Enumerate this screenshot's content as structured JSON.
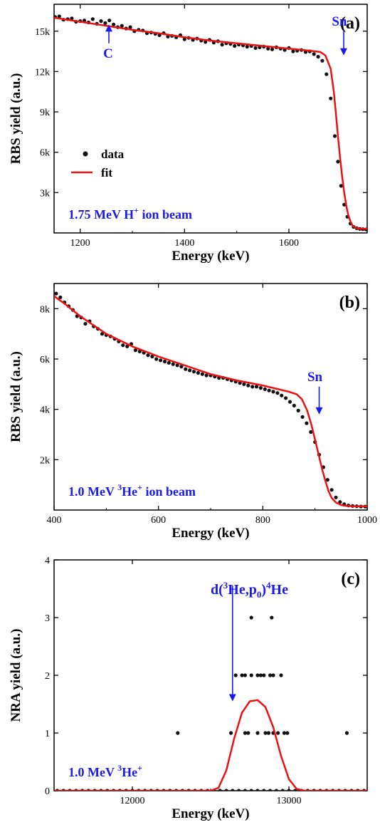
{
  "colors": {
    "data_points": "#111111",
    "fit_line": "#ee1111",
    "annotation": "#1a1aee",
    "axis": "#000000"
  },
  "chart_data": [
    {
      "type": "scatter",
      "panel_label": "(a)",
      "xlabel": "Energy (keV)",
      "ylabel": "RBS yield (a.u.)",
      "xlim": [
        1150,
        1750
      ],
      "ylim": [
        0,
        17000
      ],
      "xticks": [
        1200,
        1400,
        1600
      ],
      "xtick_labels": [
        "1200",
        "1400",
        "1600"
      ],
      "yticks": [
        3000,
        6000,
        9000,
        12000,
        15000
      ],
      "ytick_labels": [
        "3k",
        "6k",
        "9k",
        "12k",
        "15k"
      ],
      "grid": false,
      "legend_position": "middle-left",
      "legend": [
        {
          "label": "data",
          "kind": "marker"
        },
        {
          "label": "fit",
          "kind": "line"
        }
      ],
      "beam_label": {
        "text": "1.75 MeV H",
        "sup": "+",
        "tail": " ion beam"
      },
      "annotations": [
        {
          "text": "C",
          "arrow_x": 1255,
          "arrow_from": 14100,
          "arrow_to": 15500,
          "direction": "up"
        },
        {
          "text": "Sn",
          "arrow_x": 1705,
          "arrow_from": 15000,
          "arrow_to": 13200,
          "direction": "down"
        }
      ],
      "series": [
        {
          "name": "data",
          "style": "points",
          "x": [
            1152,
            1160,
            1168,
            1176,
            1184,
            1192,
            1200,
            1208,
            1216,
            1224,
            1232,
            1240,
            1248,
            1256,
            1264,
            1272,
            1280,
            1288,
            1296,
            1304,
            1312,
            1320,
            1328,
            1336,
            1344,
            1352,
            1360,
            1368,
            1376,
            1384,
            1392,
            1400,
            1408,
            1416,
            1424,
            1432,
            1440,
            1448,
            1456,
            1464,
            1472,
            1480,
            1488,
            1496,
            1504,
            1512,
            1520,
            1528,
            1536,
            1544,
            1552,
            1560,
            1568,
            1576,
            1584,
            1592,
            1600,
            1608,
            1616,
            1624,
            1632,
            1640,
            1648,
            1656,
            1664,
            1672,
            1680,
            1688,
            1694,
            1700,
            1706,
            1712,
            1718,
            1724,
            1730,
            1736,
            1742,
            1748
          ],
          "y": [
            16050,
            16100,
            15850,
            15900,
            15950,
            15700,
            15750,
            15800,
            15650,
            15900,
            15550,
            15750,
            15600,
            15800,
            15500,
            15300,
            15400,
            15200,
            15300,
            15000,
            15100,
            15050,
            14850,
            14900,
            14800,
            14700,
            14850,
            14600,
            14650,
            14550,
            14700,
            14400,
            14500,
            14350,
            14450,
            14300,
            14200,
            14350,
            14150,
            14250,
            14000,
            14100,
            14050,
            13900,
            14000,
            13950,
            13850,
            13900,
            13750,
            13800,
            13850,
            13700,
            13650,
            13800,
            13700,
            13600,
            13750,
            13500,
            13550,
            13600,
            13450,
            13500,
            13300,
            13100,
            12800,
            11800,
            10000,
            7200,
            5300,
            3500,
            2100,
            1200,
            700,
            450,
            350,
            300,
            280,
            260
          ]
        },
        {
          "name": "fit",
          "style": "line",
          "x": [
            1150,
            1200,
            1250,
            1300,
            1350,
            1400,
            1450,
            1500,
            1550,
            1600,
            1640,
            1660,
            1670,
            1680,
            1686,
            1690,
            1694,
            1698,
            1702,
            1706,
            1710,
            1714,
            1718,
            1722,
            1728,
            1735,
            1745,
            1750
          ],
          "y": [
            16000,
            15700,
            15400,
            15100,
            14850,
            14550,
            14300,
            14100,
            13900,
            13700,
            13550,
            13450,
            13200,
            12200,
            10500,
            8900,
            7200,
            5600,
            4200,
            3000,
            2000,
            1300,
            850,
            550,
            380,
            320,
            300,
            300
          ]
        }
      ]
    },
    {
      "type": "scatter",
      "panel_label": "(b)",
      "xlabel": "Energy (keV)",
      "ylabel": "RBS yield (a.u.)",
      "xlim": [
        400,
        1000
      ],
      "ylim": [
        0,
        9000
      ],
      "xticks": [
        400,
        600,
        800,
        1000
      ],
      "xtick_labels": [
        "400",
        "600",
        "800",
        "1000"
      ],
      "yticks": [
        2000,
        4000,
        6000,
        8000
      ],
      "ytick_labels": [
        "2k",
        "4k",
        "6k",
        "8k"
      ],
      "grid": false,
      "beam_label": {
        "text": "1.0 MeV ",
        "sup": "3",
        "tail": "He",
        "sup2": "+",
        "tail2": " ion beam"
      },
      "annotations": [
        {
          "text": "Sn",
          "arrow_x": 908,
          "arrow_from": 4900,
          "arrow_to": 3800,
          "direction": "down"
        }
      ],
      "series": [
        {
          "name": "data",
          "style": "points",
          "x": [
            404,
            412,
            420,
            428,
            436,
            444,
            452,
            460,
            468,
            476,
            484,
            492,
            500,
            508,
            516,
            524,
            532,
            540,
            548,
            556,
            564,
            572,
            580,
            588,
            596,
            604,
            612,
            620,
            628,
            636,
            644,
            652,
            660,
            668,
            676,
            684,
            692,
            700,
            708,
            716,
            724,
            732,
            740,
            748,
            756,
            764,
            772,
            780,
            788,
            796,
            804,
            812,
            820,
            828,
            836,
            844,
            852,
            860,
            868,
            876,
            884,
            892,
            900,
            908,
            916,
            924,
            932,
            940,
            948,
            956,
            964,
            972,
            980,
            988,
            996
          ],
          "y": [
            8600,
            8450,
            8250,
            8100,
            7950,
            7700,
            7650,
            7400,
            7500,
            7300,
            7200,
            7000,
            6950,
            6900,
            6800,
            6700,
            6550,
            6500,
            6600,
            6350,
            6300,
            6250,
            6150,
            6100,
            6000,
            5950,
            5900,
            5850,
            5800,
            5750,
            5700,
            5600,
            5550,
            5500,
            5450,
            5400,
            5350,
            5350,
            5300,
            5250,
            5250,
            5200,
            5150,
            5100,
            5050,
            5000,
            4950,
            4900,
            4900,
            4850,
            4800,
            4750,
            4700,
            4650,
            4550,
            4450,
            4300,
            4150,
            3950,
            3700,
            3450,
            3100,
            2700,
            2200,
            1700,
            1200,
            800,
            500,
            320,
            230,
            180,
            160,
            150,
            140,
            140
          ]
        },
        {
          "name": "fit",
          "style": "line",
          "x": [
            400,
            420,
            450,
            500,
            550,
            600,
            650,
            700,
            750,
            800,
            830,
            850,
            865,
            875,
            885,
            893,
            900,
            907,
            914,
            920,
            926,
            932,
            940,
            950,
            960,
            980,
            1000
          ],
          "y": [
            8500,
            8200,
            7700,
            7000,
            6500,
            6100,
            5750,
            5400,
            5150,
            4950,
            4800,
            4700,
            4600,
            4400,
            3950,
            3400,
            2800,
            2200,
            1600,
            1150,
            750,
            480,
            300,
            200,
            160,
            150,
            150
          ]
        }
      ]
    },
    {
      "type": "scatter",
      "panel_label": "(c)",
      "xlabel": "Energy (keV)",
      "ylabel": "NRA yield (a.u.)",
      "xlim": [
        11500,
        13500
      ],
      "ylim": [
        0,
        4
      ],
      "xticks": [
        12000,
        13000
      ],
      "xtick_labels": [
        "12000",
        "13000"
      ],
      "yticks": [
        0,
        1,
        2,
        3,
        4
      ],
      "ytick_labels": [
        "0",
        "1",
        "2",
        "3",
        "4"
      ],
      "grid": false,
      "beam_label": {
        "text": "1.0 MeV ",
        "sup": "3",
        "tail": "He",
        "sup2": "+",
        "tail2": ""
      },
      "reaction_label": {
        "t1": "d(",
        "s1": "3",
        "t2": "He,p",
        "b1": "0",
        "t3": ")",
        "s2": "4",
        "t4": "He"
      },
      "annotations": [
        {
          "text": "",
          "arrow_x": 12640,
          "arrow_from": 3.55,
          "arrow_to": 1.55,
          "direction": "down"
        }
      ],
      "series": [
        {
          "name": "data",
          "style": "points",
          "x": [
            12290,
            12630,
            12660,
            12720,
            12740,
            12760,
            12800,
            12820,
            12850,
            12870,
            12880,
            12900,
            12930,
            12950,
            12970,
            12990,
            13370,
            12700,
            12720,
            12800,
            12840,
            12870,
            12900,
            12760,
            12890
          ],
          "y": [
            1,
            1,
            2,
            1,
            1,
            2,
            1,
            2,
            1,
            1,
            2,
            1,
            1,
            2,
            1,
            1,
            1,
            2,
            2,
            2,
            2,
            1,
            2,
            3,
            3
          ]
        },
        {
          "name": "fit",
          "style": "line",
          "x": [
            11500,
            12500,
            12550,
            12600,
            12650,
            12700,
            12750,
            12800,
            12850,
            12900,
            12950,
            13000,
            13050,
            13100,
            13500
          ],
          "y": [
            0,
            0,
            0.05,
            0.35,
            0.9,
            1.35,
            1.55,
            1.57,
            1.45,
            1.1,
            0.6,
            0.2,
            0.03,
            0,
            0
          ]
        },
        {
          "name": "baseline",
          "style": "points",
          "x": [
            11520,
            11560,
            11600,
            11640,
            11680,
            11720,
            11760,
            11800,
            11840,
            11880,
            11920,
            11960,
            12000,
            12040,
            12080,
            12120,
            12160,
            12200,
            12240,
            12280,
            12320,
            12360,
            12400,
            12440,
            12480,
            12520,
            12560,
            12600,
            12640,
            12680,
            12720,
            12760,
            12800,
            12840,
            12880,
            12920,
            12960,
            13000,
            13040,
            13080,
            13120,
            13160,
            13200,
            13240,
            13280,
            13320,
            13360,
            13400,
            13440,
            13480
          ],
          "y": [
            0,
            0,
            0,
            0,
            0,
            0,
            0,
            0,
            0,
            0,
            0,
            0,
            0,
            0,
            0,
            0,
            0,
            0,
            0,
            0,
            0,
            0,
            0,
            0,
            0,
            0,
            0,
            0,
            0,
            0,
            0,
            0,
            0,
            0,
            0,
            0,
            0,
            0,
            0,
            0,
            0,
            0,
            0,
            0,
            0,
            0,
            0,
            0,
            0,
            0
          ]
        }
      ]
    }
  ]
}
